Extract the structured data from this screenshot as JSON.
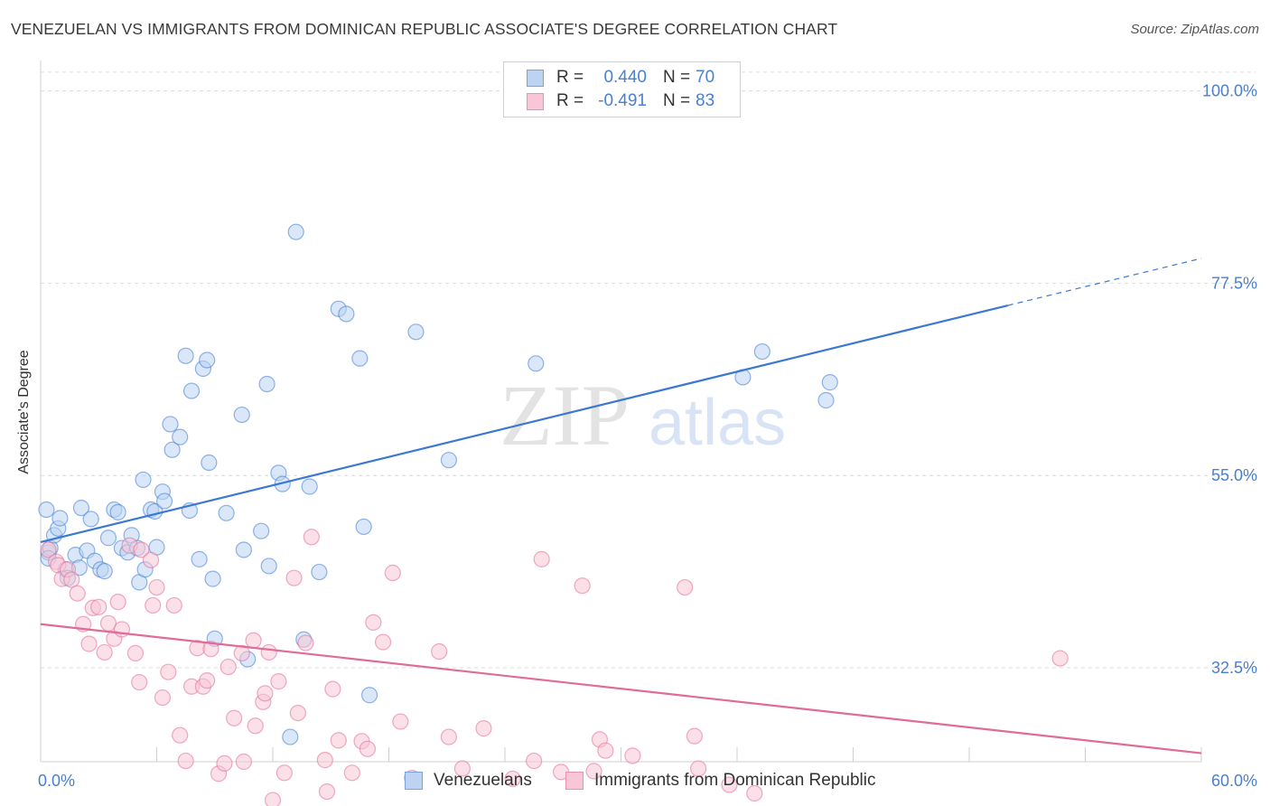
{
  "header": {
    "title": "VENEZUELAN VS IMMIGRANTS FROM DOMINICAN REPUBLIC ASSOCIATE'S DEGREE CORRELATION CHART",
    "source": "Source: ZipAtlas.com"
  },
  "watermark": {
    "part1": "ZIP",
    "part2": "atlas"
  },
  "legend": {
    "rows": [
      {
        "r_label": "R =",
        "r_value": "0.440",
        "n_label": "N =",
        "n_value": "70",
        "color": "#4a80d0",
        "fill": "#bcd3f2"
      },
      {
        "r_label": "R =",
        "r_value": "-0.491",
        "n_label": "N =",
        "n_value": "83",
        "color": "#4a80d0",
        "fill": "#f8c6d6"
      }
    ]
  },
  "bottom_legend": {
    "items": [
      {
        "label": "Venezuelans",
        "fill": "#bcd3f2",
        "stroke": "#7aa3de"
      },
      {
        "label": "Immigrants from Dominican Republic",
        "fill": "#f8c6d6",
        "stroke": "#e892ae"
      }
    ]
  },
  "chart_data": {
    "type": "scatter",
    "title": "VENEZUELAN VS IMMIGRANTS FROM DOMINICAN REPUBLIC ASSOCIATE'S DEGREE CORRELATION CHART",
    "xlabel": "",
    "ylabel": "Associate's Degree",
    "xlim": [
      0,
      60
    ],
    "ylim": [
      21.5,
      102.5
    ],
    "x_tick_labels": [
      {
        "value": 0,
        "label": "0.0%"
      },
      {
        "value": 60,
        "label": "60.0%"
      }
    ],
    "y_tick_labels": [
      {
        "value": 100,
        "label": "100.0%"
      },
      {
        "value": 77.5,
        "label": "77.5%"
      },
      {
        "value": 55,
        "label": "55.0%"
      },
      {
        "value": 32.5,
        "label": "32.5%"
      }
    ],
    "grid": "horizontal dashed",
    "legend_position": "top-center",
    "colors": {
      "blue": "#3b78d4",
      "pink": "#e06a98"
    },
    "series": [
      {
        "name": "Venezuelans",
        "color": "#3b78d4",
        "fill": "#bcd3f2",
        "trend": {
          "x0": 0,
          "y0": 47.2,
          "x1": 50,
          "y1": 74.9,
          "dashed_to_x": 60,
          "dashed_to_y": 80.4
        },
        "points": [
          [
            0.3,
            51.0
          ],
          [
            0.4,
            46.0
          ],
          [
            0.5,
            46.5
          ],
          [
            0.7,
            48.0
          ],
          [
            0.9,
            48.8
          ],
          [
            1.0,
            50.0
          ],
          [
            1.3,
            44.0
          ],
          [
            1.4,
            43.0
          ],
          [
            1.8,
            45.7
          ],
          [
            2.0,
            44.2
          ],
          [
            2.1,
            51.2
          ],
          [
            2.4,
            46.2
          ],
          [
            2.6,
            49.9
          ],
          [
            2.8,
            45.0
          ],
          [
            3.1,
            44.0
          ],
          [
            3.3,
            43.8
          ],
          [
            3.5,
            47.7
          ],
          [
            3.8,
            51.0
          ],
          [
            4.0,
            50.7
          ],
          [
            4.2,
            46.5
          ],
          [
            4.5,
            46.0
          ],
          [
            4.7,
            48.0
          ],
          [
            5.0,
            46.5
          ],
          [
            5.1,
            42.5
          ],
          [
            5.3,
            54.5
          ],
          [
            5.4,
            44.0
          ],
          [
            5.7,
            51.0
          ],
          [
            5.9,
            50.8
          ],
          [
            6.0,
            46.6
          ],
          [
            6.3,
            53.1
          ],
          [
            6.4,
            52.0
          ],
          [
            6.7,
            61.0
          ],
          [
            6.8,
            58.0
          ],
          [
            7.2,
            59.5
          ],
          [
            7.5,
            69.0
          ],
          [
            7.7,
            50.9
          ],
          [
            7.8,
            64.9
          ],
          [
            8.2,
            45.2
          ],
          [
            8.4,
            67.5
          ],
          [
            8.6,
            68.5
          ],
          [
            8.7,
            56.5
          ],
          [
            8.9,
            42.9
          ],
          [
            9.0,
            35.9
          ],
          [
            9.6,
            50.6
          ],
          [
            10.4,
            62.1
          ],
          [
            10.5,
            46.3
          ],
          [
            10.7,
            33.5
          ],
          [
            11.4,
            48.5
          ],
          [
            11.7,
            65.7
          ],
          [
            11.8,
            44.4
          ],
          [
            12.3,
            55.3
          ],
          [
            12.5,
            54.0
          ],
          [
            12.9,
            24.4
          ],
          [
            13.6,
            35.8
          ],
          [
            13.9,
            53.7
          ],
          [
            13.2,
            83.5
          ],
          [
            14.4,
            43.7
          ],
          [
            15.4,
            74.5
          ],
          [
            15.8,
            73.9
          ],
          [
            16.5,
            68.7
          ],
          [
            16.7,
            49.0
          ],
          [
            17.0,
            29.3
          ],
          [
            19.4,
            71.8
          ],
          [
            21.1,
            56.8
          ],
          [
            25.6,
            68.1
          ],
          [
            36.3,
            66.5
          ],
          [
            37.3,
            69.5
          ],
          [
            40.6,
            63.8
          ],
          [
            40.8,
            65.9
          ],
          [
            0.4,
            45.3
          ]
        ]
      },
      {
        "name": "Immigrants from Dominican Republic",
        "color": "#e06a98",
        "fill": "#f8c6d6",
        "trend": {
          "x0": 0,
          "y0": 37.6,
          "x1": 60,
          "y1": 22.5
        },
        "points": [
          [
            0.4,
            46.3
          ],
          [
            0.8,
            44.9
          ],
          [
            0.9,
            44.5
          ],
          [
            1.1,
            42.9
          ],
          [
            1.4,
            44.0
          ],
          [
            1.6,
            42.8
          ],
          [
            1.9,
            41.2
          ],
          [
            2.2,
            37.6
          ],
          [
            2.5,
            35.3
          ],
          [
            2.7,
            39.5
          ],
          [
            3.0,
            39.6
          ],
          [
            3.3,
            34.3
          ],
          [
            3.5,
            37.7
          ],
          [
            3.8,
            35.9
          ],
          [
            4.0,
            40.2
          ],
          [
            4.2,
            37.0
          ],
          [
            4.6,
            46.8
          ],
          [
            4.9,
            34.2
          ],
          [
            5.1,
            30.8
          ],
          [
            5.2,
            46.3
          ],
          [
            5.7,
            45.1
          ],
          [
            5.8,
            39.8
          ],
          [
            6.0,
            41.9
          ],
          [
            6.3,
            29.0
          ],
          [
            6.6,
            32.0
          ],
          [
            6.9,
            39.8
          ],
          [
            7.2,
            24.6
          ],
          [
            7.5,
            21.6
          ],
          [
            7.8,
            30.3
          ],
          [
            8.1,
            34.8
          ],
          [
            8.4,
            30.3
          ],
          [
            8.6,
            31.0
          ],
          [
            8.8,
            34.7
          ],
          [
            9.2,
            20.1
          ],
          [
            9.5,
            21.3
          ],
          [
            9.7,
            32.6
          ],
          [
            10.0,
            26.6
          ],
          [
            10.4,
            34.2
          ],
          [
            10.5,
            21.5
          ],
          [
            11.0,
            35.7
          ],
          [
            11.1,
            25.7
          ],
          [
            11.5,
            28.5
          ],
          [
            11.6,
            29.5
          ],
          [
            11.8,
            34.3
          ],
          [
            12.0,
            17.0
          ],
          [
            12.3,
            30.9
          ],
          [
            12.6,
            20.2
          ],
          [
            13.1,
            43.0
          ],
          [
            13.3,
            27.2
          ],
          [
            13.7,
            35.4
          ],
          [
            14.0,
            47.8
          ],
          [
            14.7,
            21.7
          ],
          [
            14.8,
            18.0
          ],
          [
            15.1,
            30.0
          ],
          [
            15.4,
            24.0
          ],
          [
            16.1,
            20.2
          ],
          [
            16.6,
            23.9
          ],
          [
            16.9,
            23.0
          ],
          [
            17.2,
            37.8
          ],
          [
            17.7,
            35.5
          ],
          [
            18.2,
            43.6
          ],
          [
            18.6,
            26.2
          ],
          [
            19.2,
            19.6
          ],
          [
            20.6,
            34.4
          ],
          [
            21.1,
            24.4
          ],
          [
            21.8,
            20.7
          ],
          [
            22.9,
            25.4
          ],
          [
            24.4,
            19.5
          ],
          [
            25.2,
            14.1
          ],
          [
            25.5,
            21.6
          ],
          [
            25.9,
            45.2
          ],
          [
            26.9,
            20.3
          ],
          [
            28.0,
            42.1
          ],
          [
            28.6,
            20.4
          ],
          [
            28.9,
            24.1
          ],
          [
            29.2,
            22.8
          ],
          [
            30.6,
            22.2
          ],
          [
            33.3,
            41.9
          ],
          [
            33.8,
            24.5
          ],
          [
            34.0,
            20.7
          ],
          [
            35.6,
            18.8
          ],
          [
            36.9,
            17.8
          ],
          [
            52.7,
            33.6
          ]
        ]
      }
    ]
  }
}
